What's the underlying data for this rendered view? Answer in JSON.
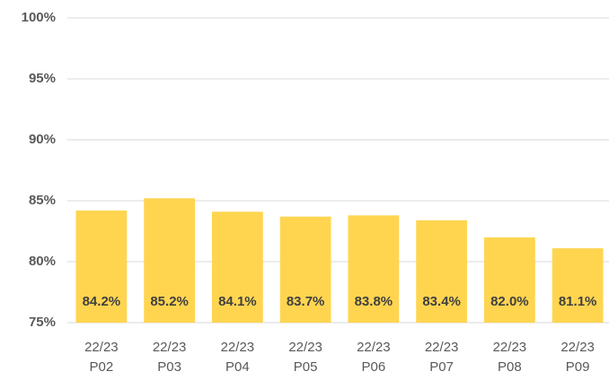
{
  "chart_data": {
    "type": "bar",
    "categories": [
      "22/23\nP02",
      "22/23\nP03",
      "22/23\nP04",
      "22/23\nP05",
      "22/23\nP06",
      "22/23\nP07",
      "22/23\nP08",
      "22/23\nP09"
    ],
    "values": [
      84.2,
      85.2,
      84.1,
      83.7,
      83.8,
      83.4,
      82.0,
      81.1
    ],
    "value_labels": [
      "84.2%",
      "85.2%",
      "84.1%",
      "83.7%",
      "83.8%",
      "83.4%",
      "82.0%",
      "81.1%"
    ],
    "color": "#ffd550",
    "ylim": [
      75,
      100
    ],
    "yticks": [
      {
        "value": 75,
        "label": "75%"
      },
      {
        "value": 80,
        "label": "80%"
      },
      {
        "value": 85,
        "label": "85%"
      },
      {
        "value": 90,
        "label": "90%"
      },
      {
        "value": 95,
        "label": "95%"
      },
      {
        "value": 100,
        "label": "100%"
      }
    ],
    "grid": true
  }
}
